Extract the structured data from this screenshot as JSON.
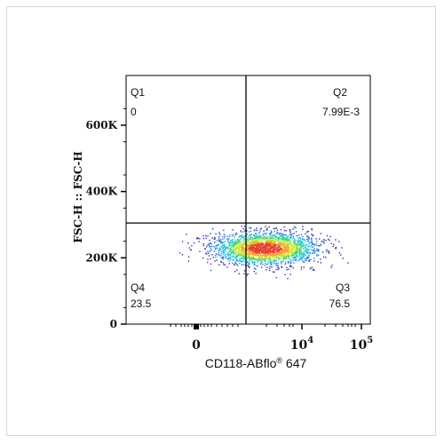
{
  "chart_data": {
    "type": "scatter",
    "subtype": "flow-cytometry-density-dot-plot",
    "xlabel": "CD118-ABflo",
    "xlabel_superscript": "®",
    "xlabel_suffix": " 647",
    "ylabel": "FSC-H :: FSC-H",
    "x_scale": "biexponential",
    "x_ticks": [
      {
        "label": "0"
      },
      {
        "label": "10",
        "sup": "4"
      },
      {
        "label": "10",
        "sup": "5"
      }
    ],
    "y_scale": "linear",
    "ylim": [
      0,
      750000
    ],
    "y_ticks": [
      {
        "label": "0",
        "value": 0
      },
      {
        "label": "200K",
        "value": 200000
      },
      {
        "label": "400K",
        "value": 400000
      },
      {
        "label": "600K",
        "value": 600000
      }
    ],
    "gate": {
      "y": 305000
    },
    "population": {
      "center_y": 230000,
      "y_spread": 22000,
      "colormap": [
        "#2f2fd6",
        "#2f7fe6",
        "#1fc4e8",
        "#33d96b",
        "#c8e830",
        "#f5a623",
        "#e8402f"
      ]
    },
    "quadrants": [
      {
        "id": "Q1",
        "name": "Q1",
        "value": "0",
        "position": "top-left"
      },
      {
        "id": "Q2",
        "name": "Q2",
        "value": "7.99E-3",
        "position": "top-right"
      },
      {
        "id": "Q3",
        "name": "Q3",
        "value": "76.5",
        "position": "bottom-right"
      },
      {
        "id": "Q4",
        "name": "Q4",
        "value": "23.5",
        "position": "bottom-left"
      }
    ],
    "grid": false,
    "legend": "none"
  }
}
